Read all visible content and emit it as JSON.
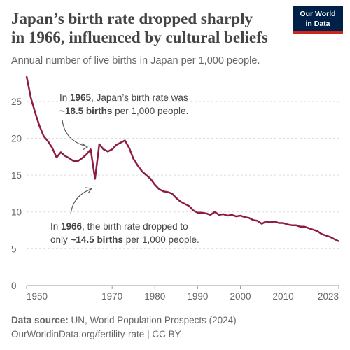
{
  "chart_data": {
    "type": "line",
    "title": [
      "Japan’s birth rate dropped sharply",
      "in 1966, influenced by cultural beliefs"
    ],
    "subtitle": "Annual number of live births in Japan per 1,000 people.",
    "logo": [
      "Our World",
      "in Data"
    ],
    "x": [
      1950,
      1951,
      1952,
      1953,
      1954,
      1955,
      1956,
      1957,
      1958,
      1959,
      1960,
      1961,
      1962,
      1963,
      1964,
      1965,
      1966,
      1967,
      1968,
      1969,
      1970,
      1971,
      1972,
      1973,
      1974,
      1975,
      1976,
      1977,
      1978,
      1979,
      1980,
      1981,
      1982,
      1983,
      1984,
      1985,
      1986,
      1987,
      1988,
      1989,
      1990,
      1991,
      1992,
      1993,
      1994,
      1995,
      1996,
      1997,
      1998,
      1999,
      2000,
      2001,
      2002,
      2003,
      2004,
      2005,
      2006,
      2007,
      2008,
      2009,
      2010,
      2011,
      2012,
      2013,
      2014,
      2015,
      2016,
      2017,
      2018,
      2019,
      2020,
      2021,
      2022,
      2023
    ],
    "series": [
      {
        "name": "Japan",
        "color": "#8c1b45",
        "values": [
          28.4,
          25.5,
          23.5,
          21.7,
          20.3,
          19.6,
          18.7,
          17.4,
          18.1,
          17.6,
          17.3,
          16.9,
          16.9,
          17.3,
          17.8,
          18.5,
          14.5,
          19.2,
          18.5,
          18.2,
          18.5,
          19.1,
          19.4,
          19.7,
          18.7,
          17.2,
          16.3,
          15.5,
          15.0,
          14.5,
          13.7,
          13.1,
          12.8,
          12.7,
          12.5,
          11.9,
          11.4,
          11.1,
          10.8,
          10.2,
          9.9,
          9.9,
          9.8,
          9.6,
          10.0,
          9.6,
          9.7,
          9.5,
          9.6,
          9.4,
          9.5,
          9.3,
          9.2,
          8.9,
          8.8,
          8.4,
          8.7,
          8.6,
          8.7,
          8.5,
          8.5,
          8.3,
          8.2,
          8.2,
          8.0,
          8.0,
          7.8,
          7.6,
          7.4,
          7.0,
          6.8,
          6.6,
          6.3,
          6.0
        ]
      }
    ],
    "xlim": [
      1950,
      2023
    ],
    "xticks": [
      1950,
      1970,
      1980,
      1990,
      2000,
      2010,
      2023
    ],
    "ylim": [
      0,
      28.5
    ],
    "yticks": [
      0,
      5,
      10,
      15,
      20,
      25
    ],
    "grid": true,
    "annotations": [
      [
        [
          {
            "text": "In "
          },
          {
            "text": "1965",
            "bold": true
          },
          {
            "text": ", Japan’s birth rate was"
          }
        ],
        [
          {
            "text": "~18.5 births",
            "bold": true
          },
          {
            "text": " per 1,000 people."
          }
        ]
      ],
      [
        [
          {
            "text": "In "
          },
          {
            "text": "1966",
            "bold": true
          },
          {
            "text": ", the birth rate dropped to"
          }
        ],
        [
          {
            "text": "only "
          },
          {
            "text": "~14.5 births",
            "bold": true
          },
          {
            "text": " per 1,000 people."
          }
        ]
      ]
    ],
    "source": [
      [
        {
          "text": "Data source:",
          "bold": true
        },
        {
          "text": " UN, World Population Prospects (2024)"
        }
      ],
      [
        {
          "text": "OurWorldinData.org/fertility-rate | CC BY"
        }
      ]
    ]
  }
}
